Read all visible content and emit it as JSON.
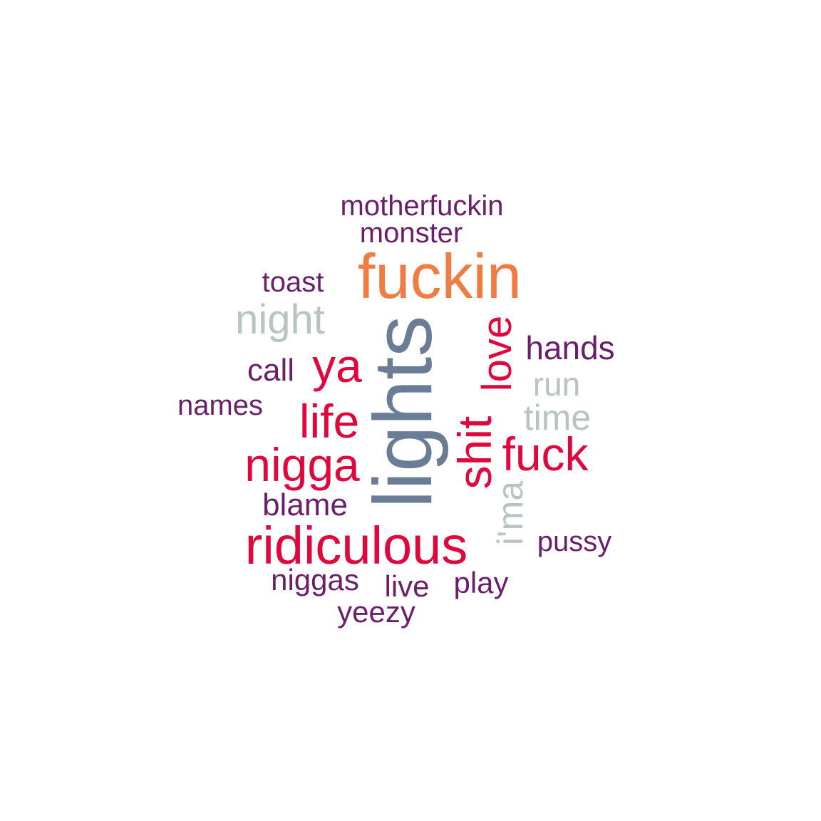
{
  "colors": {
    "purple": "#6b1f6b",
    "red": "#e0073c",
    "orange": "#f07c45",
    "slate": "#6b7d96",
    "grey": "#b8c4c2"
  },
  "words": {
    "motherfuckin": "motherfuckin",
    "monster": "monster",
    "fuckin": "fuckin",
    "toast": "toast",
    "night": "night",
    "lights": "lights",
    "love": "love",
    "hands": "hands",
    "ya": "ya",
    "call": "call",
    "run": "run",
    "names": "names",
    "life": "life",
    "time": "time",
    "shit": "shit",
    "fuck": "fuck",
    "nigga": "nigga",
    "ima": "i'ma",
    "blame": "blame",
    "ridiculous": "ridiculous",
    "pussy": "pussy",
    "niggas": "niggas",
    "live": "live",
    "play": "play",
    "yeezy": "yeezy"
  }
}
